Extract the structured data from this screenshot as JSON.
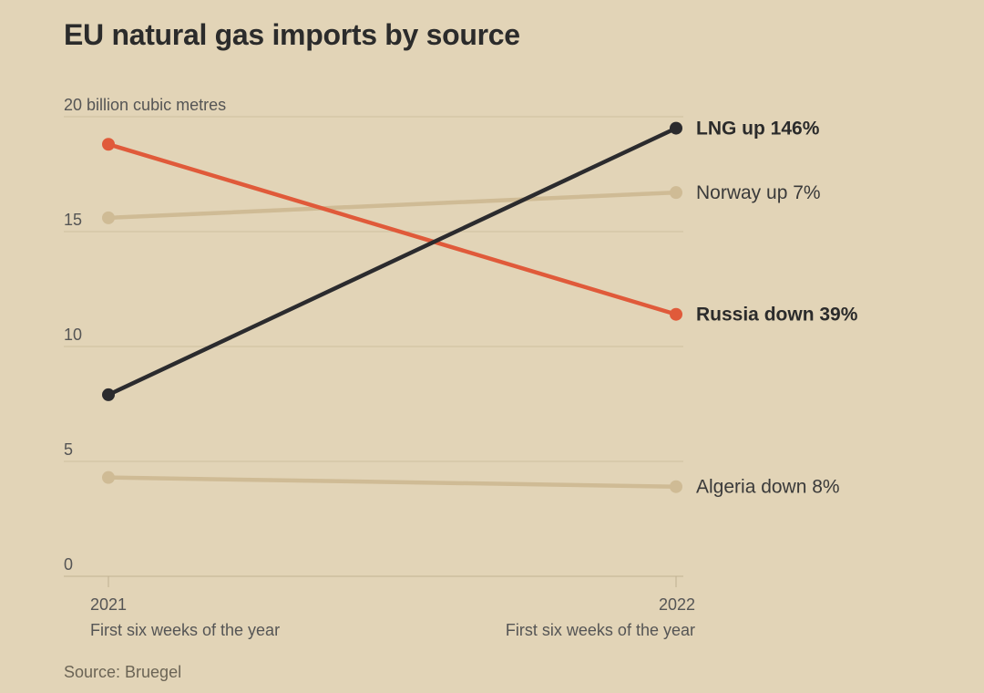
{
  "title": "EU natural gas imports by source",
  "source": "Source: Bruegel",
  "chart_data": {
    "type": "line",
    "x": [
      "2021",
      "2022"
    ],
    "x_sublabels": [
      "First six weeks of the year",
      "First six weeks of the year"
    ],
    "y_unit_label": "20 billion cubic metres",
    "y_ticks": [
      {
        "value": 0,
        "label": "0"
      },
      {
        "value": 5,
        "label": "5"
      },
      {
        "value": 10,
        "label": "10"
      },
      {
        "value": 15,
        "label": "15"
      },
      {
        "value": 20,
        "label": "20"
      }
    ],
    "ylim": [
      0,
      20
    ],
    "grid": true,
    "series": [
      {
        "name": "Norway",
        "label": "Norway up 7%",
        "values": [
          15.6,
          16.7
        ],
        "color": "#cfbb95",
        "bold": false
      },
      {
        "name": "Algeria",
        "label": "Algeria down 8%",
        "values": [
          4.3,
          3.9
        ],
        "color": "#cfbb95",
        "bold": false
      },
      {
        "name": "Russia",
        "label": "Russia down 39%",
        "values": [
          18.8,
          11.4
        ],
        "color": "#e05a3a",
        "bold": true
      },
      {
        "name": "LNG",
        "label": "LNG up 146%",
        "values": [
          7.9,
          19.5
        ],
        "color": "#2b2b2e",
        "bold": true
      }
    ]
  }
}
